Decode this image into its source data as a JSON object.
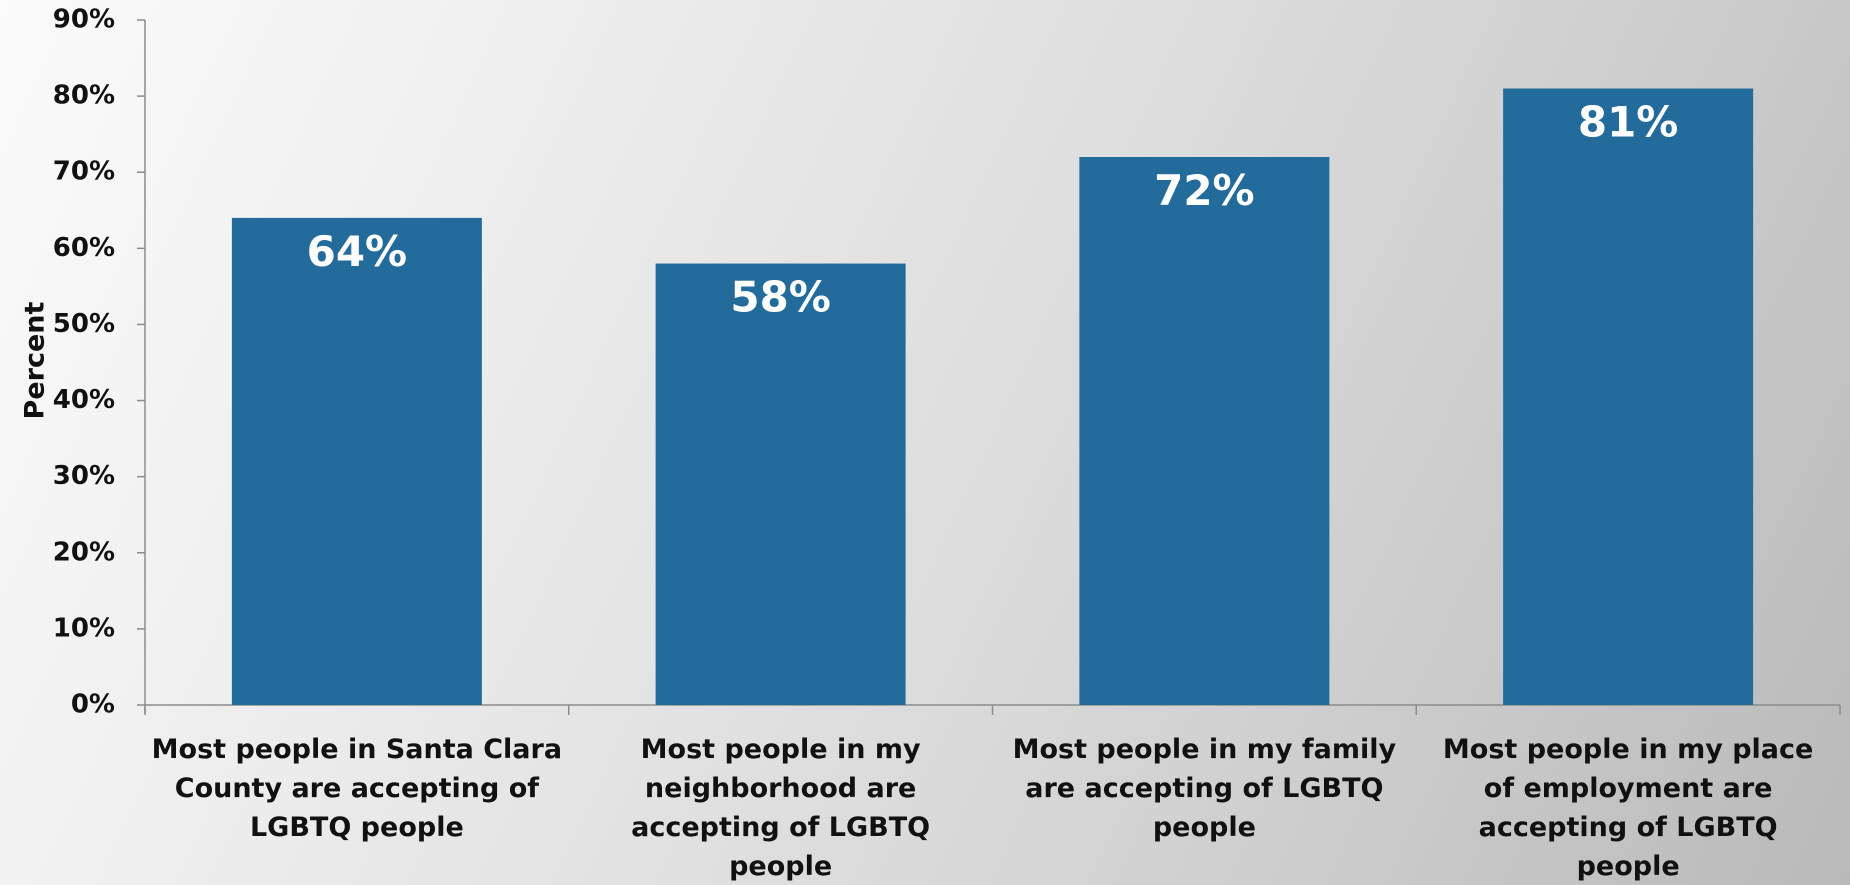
{
  "chart_data": {
    "type": "bar",
    "title": "",
    "xlabel": "",
    "ylabel": "Percent",
    "ylim": [
      0,
      90
    ],
    "yticks": [
      "0%",
      "10%",
      "20%",
      "30%",
      "40%",
      "50%",
      "60%",
      "70%",
      "80%",
      "90%"
    ],
    "categories": [
      "Most people in Santa Clara County are accepting of LGBTQ people",
      "Most people in my neighborhood are accepting of LGBTQ people",
      "Most people in my family are accepting of LGBTQ people",
      "Most people in my place of employment are accepting of LGBTQ people"
    ],
    "category_lines": [
      [
        "Most people in Santa Clara",
        "County are accepting of",
        "LGBTQ people"
      ],
      [
        "Most people in my",
        "neighborhood are",
        "accepting of LGBTQ",
        "people"
      ],
      [
        "Most people in my family",
        "are accepting of LGBTQ",
        "people"
      ],
      [
        "Most people in my place",
        "of employment are",
        "accepting of LGBTQ",
        "people"
      ]
    ],
    "values": [
      64,
      58,
      72,
      81
    ],
    "data_labels": [
      "64%",
      "58%",
      "72%",
      "81%"
    ],
    "bar_color": "#236b9b",
    "axis_color": "#8c8c8c",
    "grid": false,
    "legend": "none"
  }
}
